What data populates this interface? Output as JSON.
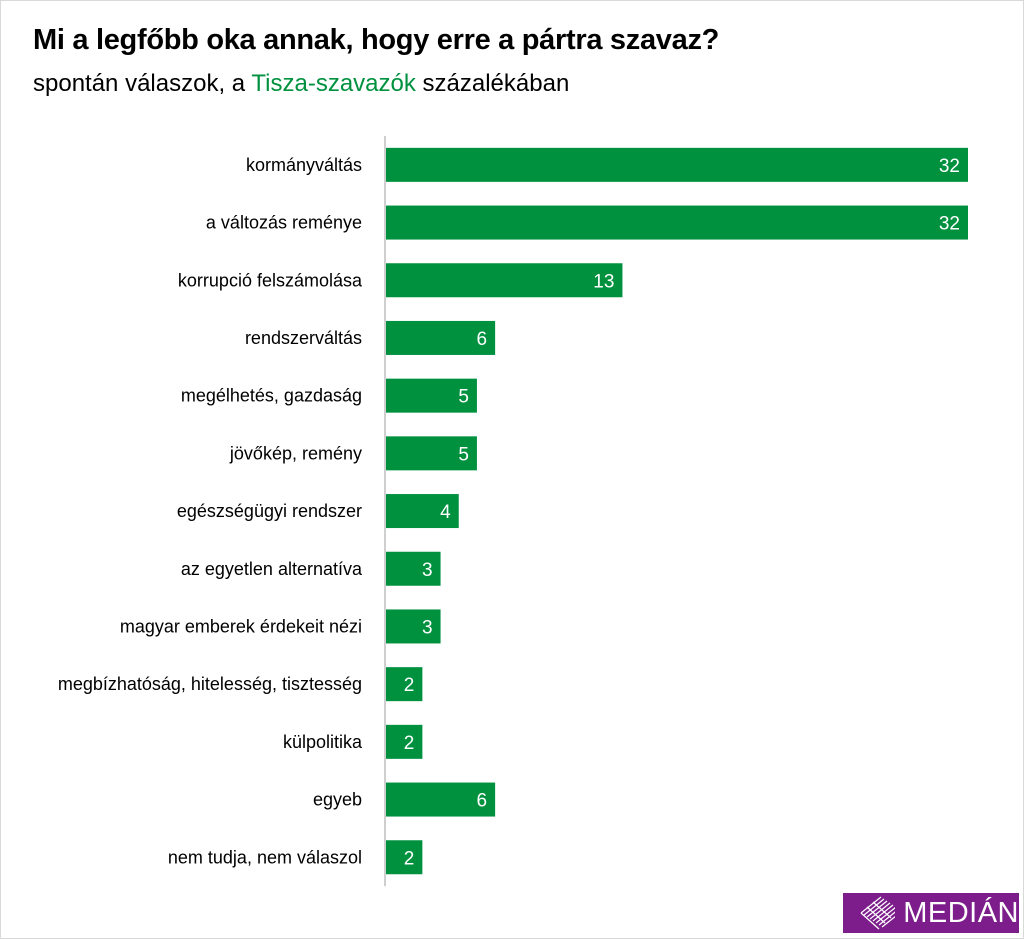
{
  "chart_data": {
    "type": "bar",
    "orientation": "horizontal",
    "title": "Mi a legfőbb oka annak, hogy erre a pártra szavaz?",
    "subtitle_prefix": "spontán válaszok, a ",
    "subtitle_highlight": "Tisza-szavazók",
    "subtitle_suffix": " százalékában",
    "categories": [
      "kormányváltás",
      "a változás reménye",
      "korrupció felszámolása",
      "rendszerváltás",
      "megélhetés, gazdaság",
      "jövőkép, remény",
      "egészségügyi rendszer",
      "az egyetlen alternatíva",
      "magyar emberek érdekeit nézi",
      "megbízhatóság, hitelesség, tisztesség",
      "külpolitika",
      "egyeb",
      "nem tudja, nem válaszol"
    ],
    "values": [
      32,
      32,
      13,
      6,
      5,
      5,
      4,
      3,
      3,
      2,
      2,
      6,
      2
    ],
    "xlim": [
      0,
      32
    ],
    "grid": false,
    "bar_color": "#00913f",
    "highlight_color": "#00913f"
  },
  "logo": {
    "text": "MEDIÁN",
    "color": "#7d1d8c"
  }
}
